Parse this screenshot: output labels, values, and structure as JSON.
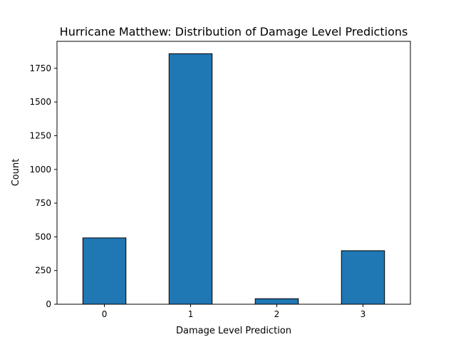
{
  "chart_data": {
    "type": "bar",
    "title": "Hurricane Matthew: Distribution of Damage Level Predictions",
    "xlabel": "Damage Level Prediction",
    "ylabel": "Count",
    "categories": [
      "0",
      "1",
      "2",
      "3"
    ],
    "values": [
      492,
      1858,
      41,
      397
    ],
    "ylim": [
      0,
      1950
    ],
    "yticks": [
      0,
      250,
      500,
      750,
      1000,
      1250,
      1500,
      1750
    ],
    "grid": false,
    "bar_color": "#1f77b4",
    "edge_color": "#000000"
  }
}
